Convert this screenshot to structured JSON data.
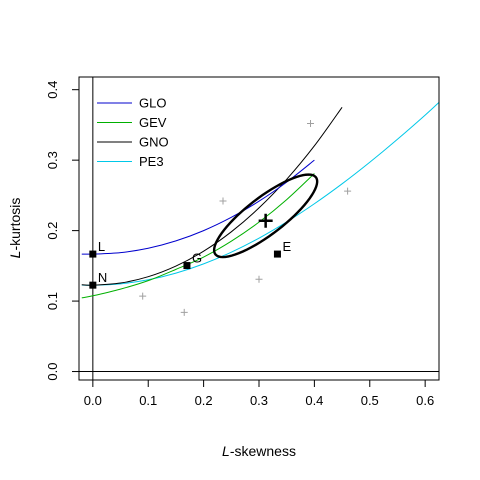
{
  "chart_data": {
    "type": "scatter",
    "title": "",
    "xlabel_italic": "L",
    "xlabel_rest": "-skewness",
    "ylabel_italic": "L",
    "ylabel_rest": "-kurtosis",
    "xlim": [
      -0.025,
      0.625
    ],
    "ylim": [
      -0.012,
      0.418
    ],
    "x_ticks": [
      0.0,
      0.1,
      0.2,
      0.3,
      0.4,
      0.5,
      0.6
    ],
    "x_tick_labels": [
      "0.0",
      "0.1",
      "0.2",
      "0.3",
      "0.4",
      "0.5",
      "0.6"
    ],
    "y_ticks": [
      0.0,
      0.1,
      0.2,
      0.3,
      0.4
    ],
    "y_tick_labels": [
      "0.0",
      "0.1",
      "0.2",
      "0.3",
      "0.4"
    ],
    "grid": false,
    "legend_position": "top-left",
    "reference_lines": {
      "x": 0,
      "y": 0
    },
    "series": [
      {
        "name": "GLO",
        "color": "#0000cd",
        "x": [
          -0.02,
          0.0,
          0.05,
          0.1,
          0.15,
          0.2,
          0.25,
          0.3,
          0.35,
          0.4
        ],
        "y": [
          0.1667,
          0.1667,
          0.1688,
          0.175,
          0.1854,
          0.2,
          0.2188,
          0.2417,
          0.2688,
          0.3
        ],
        "style": "curve"
      },
      {
        "name": "GEV",
        "color": "#00b000",
        "x": [
          -0.02,
          0.0,
          0.05,
          0.1,
          0.15,
          0.2,
          0.25,
          0.3,
          0.35,
          0.4
        ],
        "y": [
          0.1046,
          0.1075,
          0.117,
          0.129,
          0.145,
          0.1625,
          0.185,
          0.212,
          0.244,
          0.281
        ],
        "style": "curve"
      },
      {
        "name": "GNO",
        "color": "#000000",
        "x": [
          -0.02,
          0.0,
          0.05,
          0.1,
          0.15,
          0.2,
          0.25,
          0.3,
          0.35,
          0.4,
          0.45
        ],
        "y": [
          0.1231,
          0.1226,
          0.1256,
          0.1346,
          0.1497,
          0.1708,
          0.1983,
          0.2322,
          0.2728,
          0.3203,
          0.375
        ],
        "style": "curve"
      },
      {
        "name": "PE3",
        "color": "#00c8e8",
        "x": [
          -0.02,
          0.0,
          0.05,
          0.1,
          0.15,
          0.2,
          0.25,
          0.3,
          0.35,
          0.4,
          0.45,
          0.5,
          0.55,
          0.6,
          0.625
        ],
        "y": [
          0.1228,
          0.1226,
          0.1245,
          0.1302,
          0.1397,
          0.1528,
          0.1694,
          0.1893,
          0.2123,
          0.2381,
          0.2664,
          0.297,
          0.3296,
          0.3639,
          0.382
        ],
        "style": "curve"
      }
    ],
    "points": [
      {
        "label": "L",
        "x": 0.0,
        "y": 0.1667
      },
      {
        "label": "N",
        "x": 0.0,
        "y": 0.1226
      },
      {
        "label": "G",
        "x": 0.1699,
        "y": 0.1504
      },
      {
        "label": "E",
        "x": 0.3333,
        "y": 0.1667
      }
    ],
    "sites": [
      {
        "x": 0.09,
        "y": 0.107
      },
      {
        "x": 0.165,
        "y": 0.084
      },
      {
        "x": 0.235,
        "y": 0.242
      },
      {
        "x": 0.3,
        "y": 0.131
      },
      {
        "x": 0.393,
        "y": 0.352
      },
      {
        "x": 0.46,
        "y": 0.256
      }
    ],
    "regional_average": {
      "x": 0.312,
      "y": 0.214
    },
    "confidence_ellipse": {
      "center_x": 0.312,
      "center_y": 0.221,
      "semi_major": 0.1062,
      "semi_minor": 0.0284,
      "angle_deg": 30
    }
  }
}
